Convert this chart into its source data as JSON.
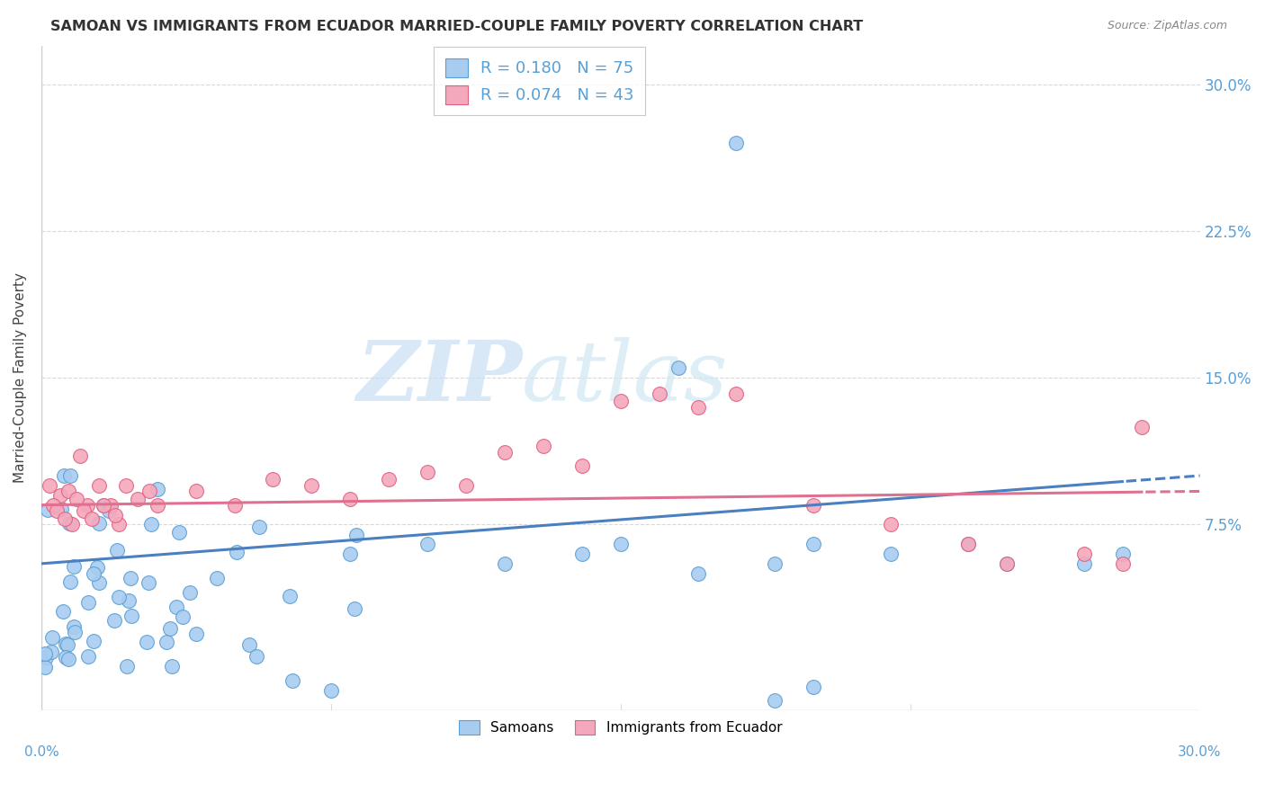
{
  "title": "SAMOAN VS IMMIGRANTS FROM ECUADOR MARRIED-COUPLE FAMILY POVERTY CORRELATION CHART",
  "source": "Source: ZipAtlas.com",
  "ylabel": "Married-Couple Family Poverty",
  "ytick_vals": [
    0.075,
    0.15,
    0.225,
    0.3
  ],
  "xlim": [
    0.0,
    0.3
  ],
  "ylim": [
    -0.02,
    0.32
  ],
  "legend1_R": "0.180",
  "legend1_N": "75",
  "legend2_R": "0.074",
  "legend2_N": "43",
  "color_samoan": "#A8CCF0",
  "color_ecuador": "#F4A8BC",
  "color_samoan_edge": "#5A9FD4",
  "color_ecuador_edge": "#E06080",
  "color_samoan_line": "#4A7FC0",
  "color_ecuador_line": "#E07090",
  "legend_samoans": "Samoans",
  "legend_ecuador": "Immigrants from Ecuador",
  "watermark_zip": "ZIP",
  "watermark_atlas": "atlas",
  "background_color": "#ffffff",
  "grid_color": "#d8d8d8",
  "tick_color": "#5A9FD4",
  "title_color": "#333333",
  "source_color": "#888888"
}
